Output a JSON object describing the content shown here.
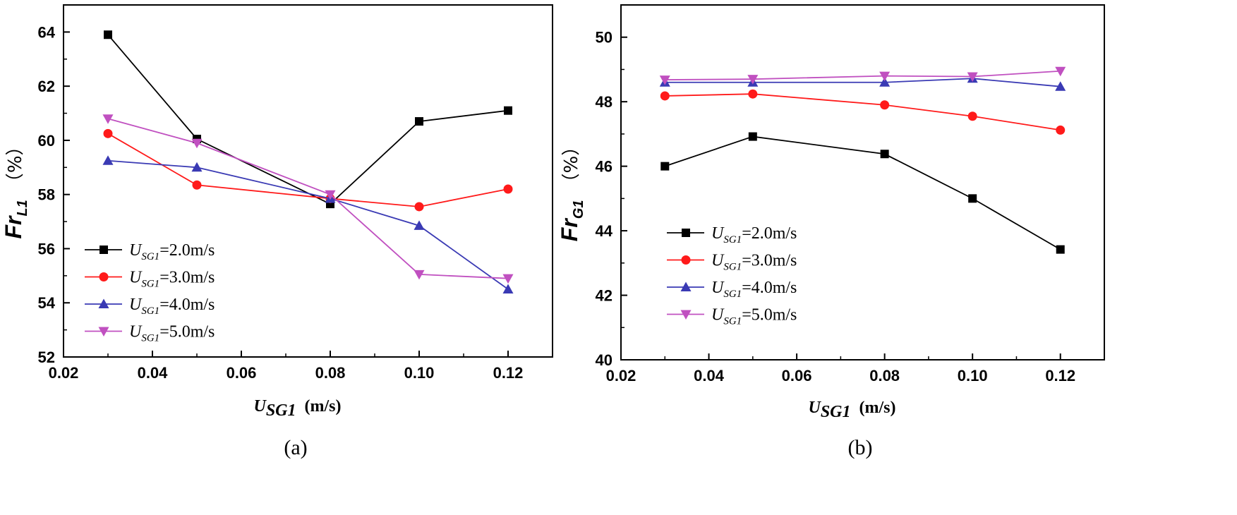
{
  "chart_data": [
    {
      "type": "line",
      "panel_caption": "(a)",
      "ylabel": {
        "main": "Fr",
        "sub": "L1",
        "unit": "（%）"
      },
      "xlabel": {
        "main": "U",
        "sub": "SG1",
        "unit": "(m/s)"
      },
      "xlim": [
        0.02,
        0.13
      ],
      "ylim": [
        52,
        65
      ],
      "xticks": [
        "0.02",
        "0.04",
        "0.06",
        "0.08",
        "0.10",
        "0.12"
      ],
      "yticks": [
        "52",
        "54",
        "56",
        "58",
        "60",
        "62",
        "64"
      ],
      "x": [
        0.03,
        0.05,
        0.08,
        0.1,
        0.12
      ],
      "legend_position": "lower-left",
      "series": [
        {
          "name": "U_SG1=2.0m/s",
          "var": "U",
          "sub": "SG1",
          "value": "=2.0m/s",
          "color": "#000000",
          "marker": "square",
          "values": [
            63.9,
            60.05,
            57.65,
            60.7,
            61.1
          ]
        },
        {
          "name": "U_SG1=3.0m/s",
          "var": "U",
          "sub": "SG1",
          "value": "=3.0m/s",
          "color": "#ff1a1a",
          "marker": "circle",
          "values": [
            60.25,
            58.35,
            57.85,
            57.55,
            58.2
          ]
        },
        {
          "name": "U_SG1=4.0m/s",
          "var": "U",
          "sub": "SG1",
          "value": "=4.0m/s",
          "color": "#3a3ab4",
          "marker": "triangle-up",
          "values": [
            59.25,
            59.0,
            57.85,
            56.85,
            54.5
          ]
        },
        {
          "name": "U_SG1=5.0m/s",
          "var": "U",
          "sub": "SG1",
          "value": "=5.0m/s",
          "color": "#c050c0",
          "marker": "triangle-down",
          "values": [
            60.8,
            59.9,
            58.0,
            55.05,
            54.9
          ]
        }
      ]
    },
    {
      "type": "line",
      "panel_caption": "(b)",
      "ylabel": {
        "main": "Fr",
        "sub": "G1",
        "unit": "（%）"
      },
      "xlabel": {
        "main": "U",
        "sub": "SG1",
        "unit": "(m/s)"
      },
      "xlim": [
        0.02,
        0.13
      ],
      "ylim": [
        40,
        51
      ],
      "xticks": [
        "0.02",
        "0.04",
        "0.06",
        "0.08",
        "0.10",
        "0.12"
      ],
      "yticks": [
        "40",
        "42",
        "44",
        "46",
        "48",
        "50"
      ],
      "x": [
        0.03,
        0.05,
        0.08,
        0.1,
        0.12
      ],
      "legend_position": "lower-left",
      "series": [
        {
          "name": "U_SG1=2.0m/s",
          "var": "U",
          "sub": "SG1",
          "value": "=2.0m/s",
          "color": "#000000",
          "marker": "square",
          "values": [
            46.0,
            46.92,
            46.38,
            45.0,
            43.42
          ]
        },
        {
          "name": "U_SG1=3.0m/s",
          "var": "U",
          "sub": "SG1",
          "value": "=3.0m/s",
          "color": "#ff1a1a",
          "marker": "circle",
          "values": [
            48.18,
            48.24,
            47.9,
            47.55,
            47.12
          ]
        },
        {
          "name": "U_SG1=4.0m/s",
          "var": "U",
          "sub": "SG1",
          "value": "=4.0m/s",
          "color": "#3a3ab4",
          "marker": "triangle-up",
          "values": [
            48.6,
            48.6,
            48.6,
            48.72,
            48.47
          ]
        },
        {
          "name": "U_SG1=5.0m/s",
          "var": "U",
          "sub": "SG1",
          "value": "=5.0m/s",
          "color": "#c050c0",
          "marker": "triangle-down",
          "values": [
            48.68,
            48.7,
            48.8,
            48.78,
            48.95
          ]
        }
      ]
    }
  ]
}
